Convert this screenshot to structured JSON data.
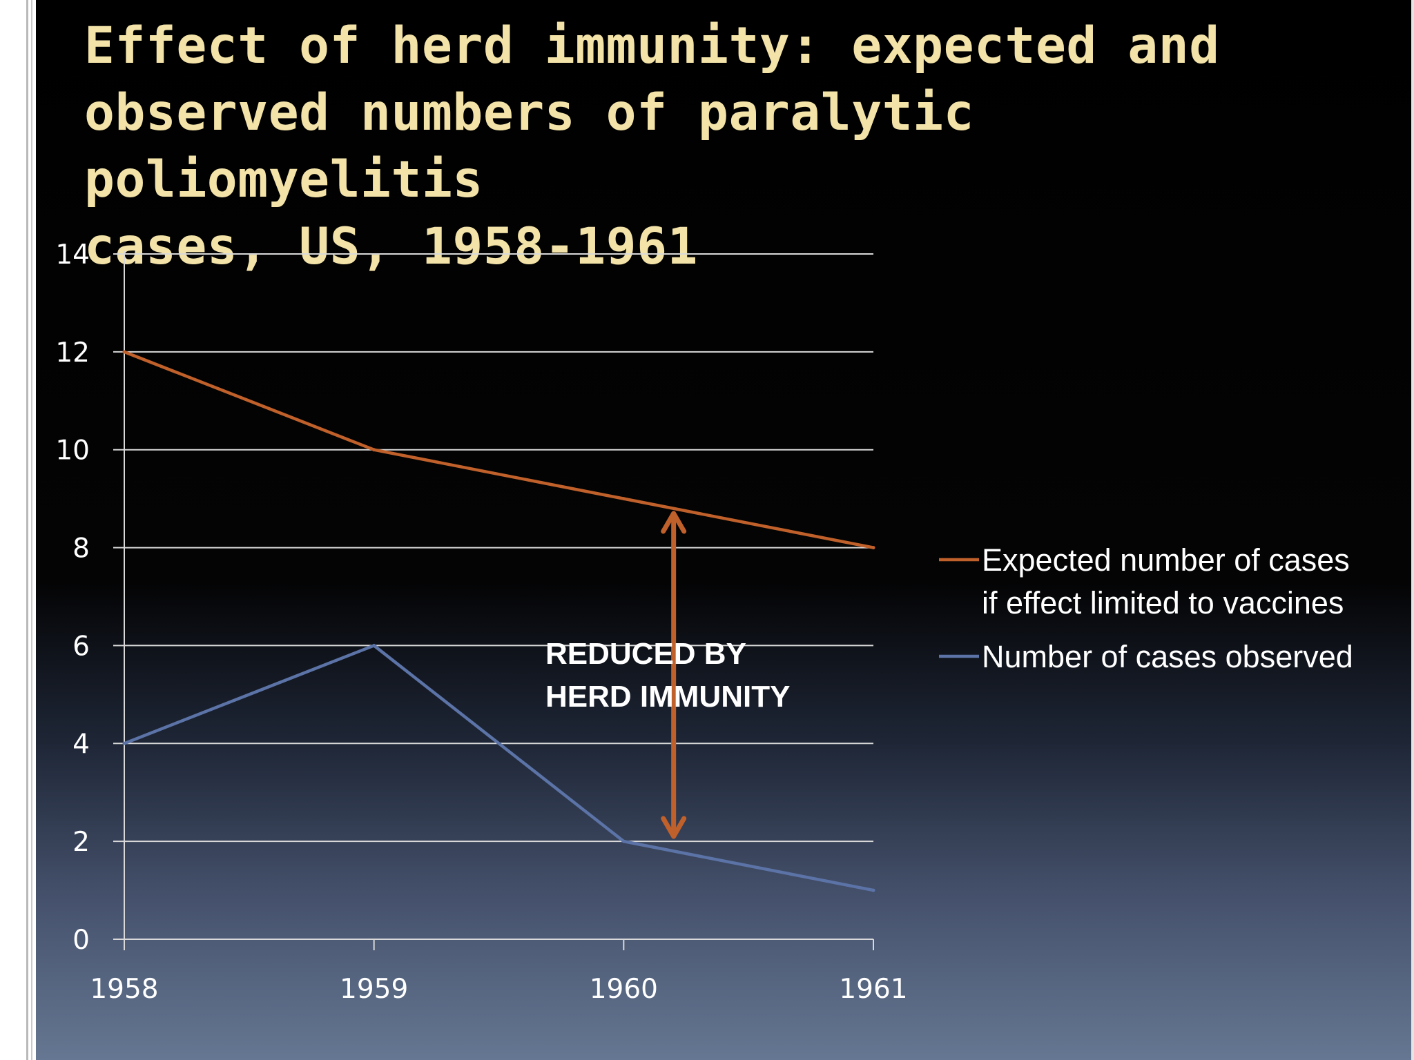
{
  "slide": {
    "title": "Effect of herd immunity: expected and\nobserved numbers of paralytic poliomyelitis\ncases, US, 1958-1961"
  },
  "chart_data": {
    "type": "line",
    "title": "Effect of herd immunity: expected and observed numbers of paralytic poliomyelitis cases, US, 1958-1961",
    "categories": [
      "1958",
      "1959",
      "1960",
      "1961"
    ],
    "y_ticks": [
      "0",
      "2",
      "4",
      "6",
      "8",
      "10",
      "12",
      "14"
    ],
    "ylim": [
      0,
      14
    ],
    "grid": true,
    "legend_position": "right",
    "series": [
      {
        "name": "Expected number of cases if effect limited to vaccines",
        "legend_lines": [
          "Expected number of cases",
          "if effect limited to vaccines"
        ],
        "values": [
          12,
          10,
          9,
          8
        ],
        "color": "#c0602a"
      },
      {
        "name": "Number of cases observed",
        "legend_lines": [
          "Number of cases observed"
        ],
        "values": [
          4,
          6,
          2,
          1
        ],
        "color": "#5b73a6"
      }
    ],
    "annotation": {
      "lines": [
        "REDUCED BY",
        "HERD IMMUNITY"
      ],
      "arrow_x": 2.2,
      "arrow_from": 8.7,
      "arrow_to": 2.1,
      "color": "#c0602a"
    }
  }
}
